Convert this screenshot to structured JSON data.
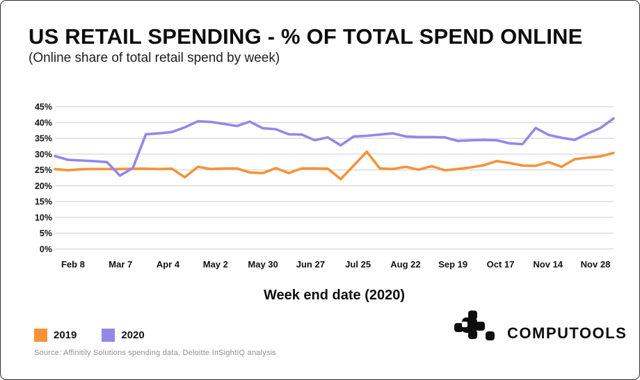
{
  "page": {
    "background": "#ffffff",
    "border_color": "#2d2d2d"
  },
  "header": {
    "title": "US RETAIL SPENDING - % OF TOTAL SPEND ONLINE",
    "subtitle": "(Online share of total retail spend by week)"
  },
  "chart_data": {
    "type": "line",
    "title": "US RETAIL SPENDING - % OF TOTAL SPEND ONLINE",
    "subtitle": "(Online share of total retail spend by week)",
    "xlabel": "Week end date (2020)",
    "ylabel": "",
    "ylim": [
      0,
      45
    ],
    "y_tick_step": 5,
    "y_tick_suffix": "%",
    "grid": "horizontal",
    "grid_color": "#cbcbcb",
    "x": "44 weekly points, Feb 1 - Nov 28 2020",
    "x_tick_labels": [
      "Feb 8",
      "Mar 7",
      "Apr 4",
      "May 2",
      "May 30",
      "Jun 27",
      "Jul 25",
      "Aug 22",
      "Sep 19",
      "Oct 17",
      "Nov 14",
      "Nov 28"
    ],
    "legend_position": "bottom-left",
    "series": [
      {
        "name": "2019",
        "color": "#f79239",
        "values": [
          25.3,
          24.9,
          25.2,
          25.3,
          25.3,
          25.3,
          25.4,
          25.4,
          25.3,
          25.4,
          22.7,
          26.0,
          25.3,
          25.5,
          25.5,
          24.2,
          24.0,
          25.6,
          24.0,
          25.5,
          25.5,
          25.4,
          22.1,
          26.4,
          30.8,
          25.5,
          25.3,
          26.0,
          25.1,
          26.2,
          24.9,
          25.3,
          25.8,
          26.5,
          27.8,
          27.2,
          26.4,
          26.3,
          27.5,
          26.0,
          28.4,
          28.9,
          29.3,
          30.4
        ]
      },
      {
        "name": "2020",
        "color": "#9388e8",
        "values": [
          29.4,
          28.2,
          28.0,
          27.8,
          27.5,
          23.2,
          25.6,
          36.3,
          36.6,
          37.0,
          38.5,
          40.4,
          40.2,
          39.6,
          38.9,
          40.3,
          38.2,
          37.9,
          36.3,
          36.2,
          34.4,
          35.3,
          32.8,
          35.6,
          35.8,
          36.2,
          36.6,
          35.6,
          35.4,
          35.4,
          35.3,
          34.2,
          34.4,
          34.5,
          34.4,
          33.4,
          33.2,
          38.3,
          36.1,
          35.2,
          34.5,
          36.5,
          38.3,
          41.3
        ]
      }
    ]
  },
  "branding": {
    "name": "COMPUTOOLS",
    "logo_icon": "computools-pixel-mark",
    "color": "#0d0d0d"
  },
  "source_note": "Source: Affinitily Solutions spending data, Deloitte InSightIQ analysis"
}
